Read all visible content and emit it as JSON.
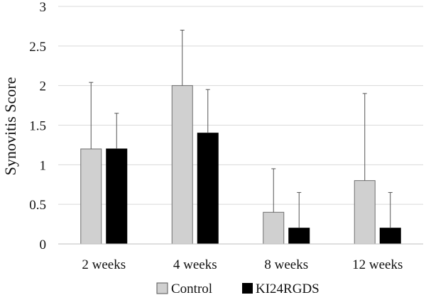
{
  "chart_data": {
    "type": "bar",
    "ylabel": "Synovitis  Score",
    "ylim": [
      0,
      3
    ],
    "yticks": [
      0,
      0.5,
      1,
      1.5,
      2,
      2.5,
      3
    ],
    "ytick_labels": [
      "0",
      "0.5",
      "1",
      "1.5",
      "2",
      "2.5",
      "3"
    ],
    "categories": [
      "2 weeks",
      "4 weeks",
      "8 weeks",
      "12 weeks"
    ],
    "series": [
      {
        "name": "Control",
        "color": "#d0d0d0",
        "values": [
          1.2,
          2.0,
          0.4,
          0.8
        ],
        "error_upper": [
          0.84,
          0.7,
          0.55,
          1.1
        ]
      },
      {
        "name": "KI24RGDS",
        "color": "#000000",
        "values": [
          1.2,
          1.4,
          0.2,
          0.2
        ],
        "error_upper": [
          0.45,
          0.55,
          0.45,
          0.45
        ]
      }
    ],
    "grid": true,
    "legend": "bottom"
  }
}
